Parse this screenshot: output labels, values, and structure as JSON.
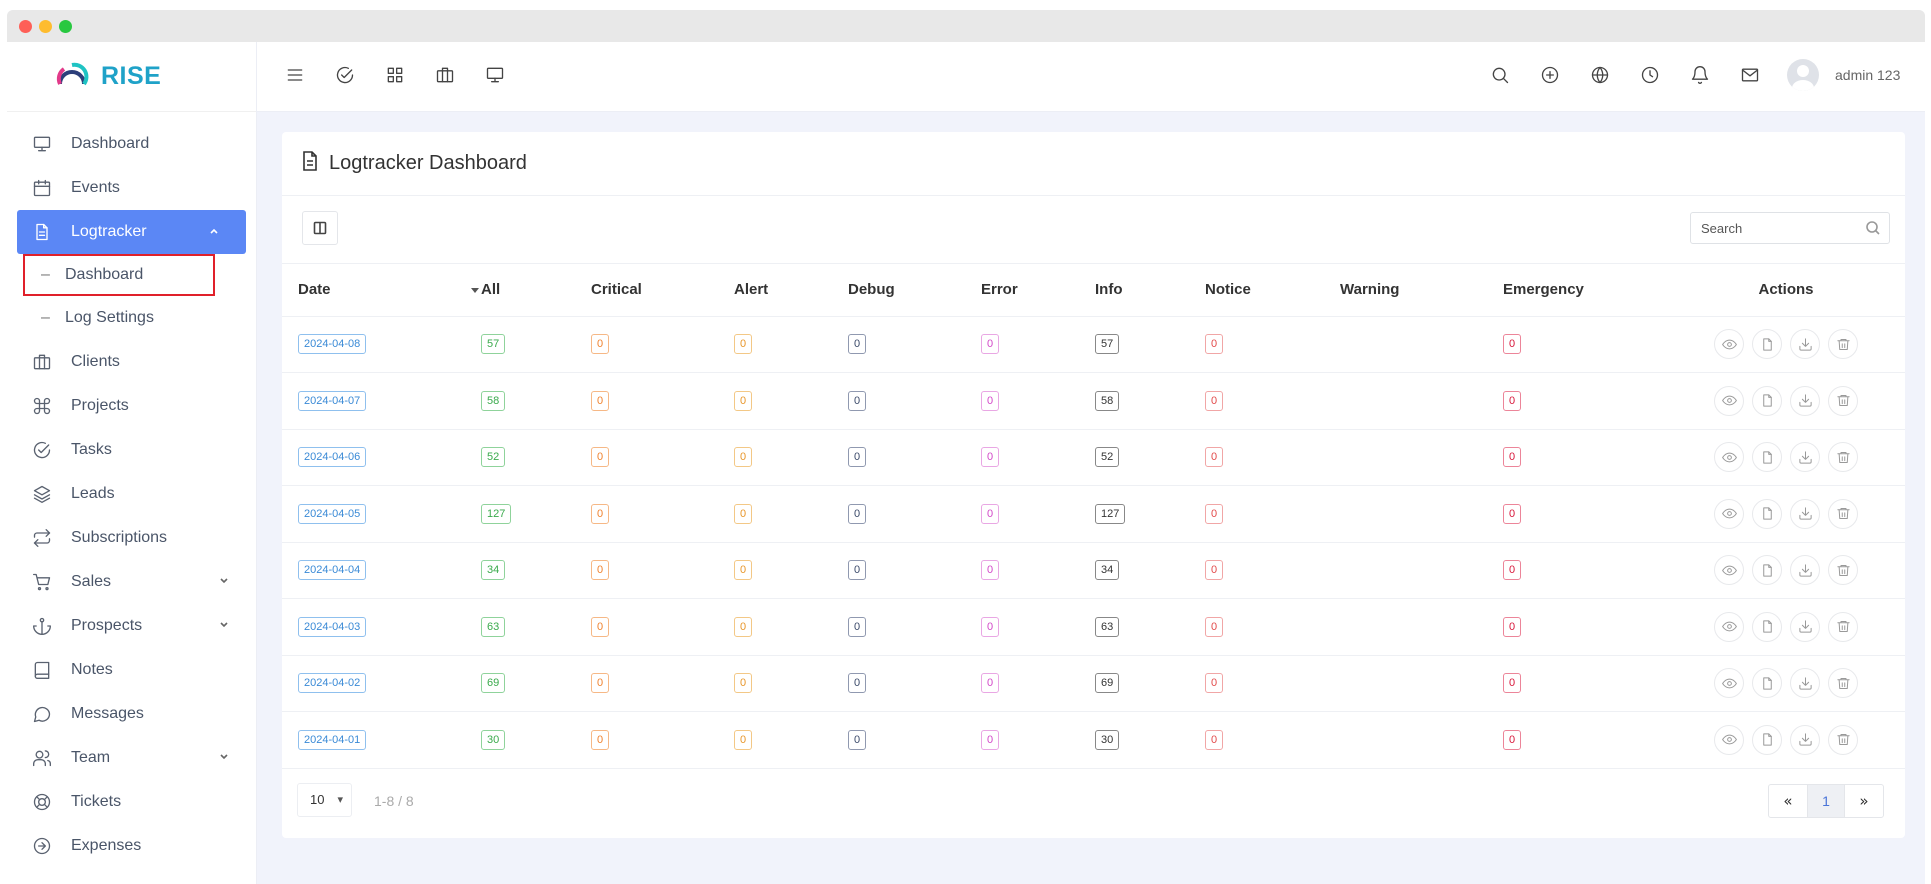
{
  "brand": {
    "name": "RISE"
  },
  "sidebar": {
    "items": [
      {
        "label": "Dashboard",
        "icon": "monitor-icon"
      },
      {
        "label": "Events",
        "icon": "calendar-icon"
      },
      {
        "label": "Logtracker",
        "icon": "file-text-icon",
        "active": true,
        "expanded": true
      },
      {
        "label": "Dashboard",
        "sub": true,
        "highlighted": true
      },
      {
        "label": "Log Settings",
        "sub": true
      },
      {
        "label": "Clients",
        "icon": "briefcase-icon"
      },
      {
        "label": "Projects",
        "icon": "command-icon"
      },
      {
        "label": "Tasks",
        "icon": "check-circle-icon"
      },
      {
        "label": "Leads",
        "icon": "layers-icon"
      },
      {
        "label": "Subscriptions",
        "icon": "repeat-icon"
      },
      {
        "label": "Sales",
        "icon": "shopping-cart-icon",
        "has_children": true
      },
      {
        "label": "Prospects",
        "icon": "anchor-icon",
        "has_children": true
      },
      {
        "label": "Notes",
        "icon": "book-icon"
      },
      {
        "label": "Messages",
        "icon": "message-circle-icon"
      },
      {
        "label": "Team",
        "icon": "users-icon",
        "has_children": true
      },
      {
        "label": "Tickets",
        "icon": "life-buoy-icon"
      },
      {
        "label": "Expenses",
        "icon": "arrow-right-circle-icon"
      }
    ]
  },
  "topbar": {
    "left_icons": [
      "menu-icon",
      "check-circle-icon",
      "grid-icon",
      "briefcase-icon",
      "monitor-icon"
    ],
    "right_icons": [
      "search-icon",
      "plus-circle-icon",
      "globe-icon",
      "clock-icon",
      "bell-icon",
      "mail-icon"
    ],
    "user_name": "admin 123"
  },
  "page": {
    "title": "Logtracker Dashboard",
    "search_placeholder": "Search"
  },
  "table": {
    "columns": [
      "Date",
      "All",
      "Critical",
      "Alert",
      "Debug",
      "Error",
      "Info",
      "Notice",
      "Warning",
      "Emergency",
      "Actions"
    ],
    "rows": [
      {
        "date": "2024-04-08",
        "all": "57",
        "critical": "0",
        "alert": "0",
        "debug": "0",
        "error": "0",
        "info": "57",
        "notice": "0",
        "warning": "",
        "emergency": "0"
      },
      {
        "date": "2024-04-07",
        "all": "58",
        "critical": "0",
        "alert": "0",
        "debug": "0",
        "error": "0",
        "info": "58",
        "notice": "0",
        "warning": "",
        "emergency": "0"
      },
      {
        "date": "2024-04-06",
        "all": "52",
        "critical": "0",
        "alert": "0",
        "debug": "0",
        "error": "0",
        "info": "52",
        "notice": "0",
        "warning": "",
        "emergency": "0"
      },
      {
        "date": "2024-04-05",
        "all": "127",
        "critical": "0",
        "alert": "0",
        "debug": "0",
        "error": "0",
        "info": "127",
        "notice": "0",
        "warning": "",
        "emergency": "0"
      },
      {
        "date": "2024-04-04",
        "all": "34",
        "critical": "0",
        "alert": "0",
        "debug": "0",
        "error": "0",
        "info": "34",
        "notice": "0",
        "warning": "",
        "emergency": "0"
      },
      {
        "date": "2024-04-03",
        "all": "63",
        "critical": "0",
        "alert": "0",
        "debug": "0",
        "error": "0",
        "info": "63",
        "notice": "0",
        "warning": "",
        "emergency": "0"
      },
      {
        "date": "2024-04-02",
        "all": "69",
        "critical": "0",
        "alert": "0",
        "debug": "0",
        "error": "0",
        "info": "69",
        "notice": "0",
        "warning": "",
        "emergency": "0"
      },
      {
        "date": "2024-04-01",
        "all": "30",
        "critical": "0",
        "alert": "0",
        "debug": "0",
        "error": "0",
        "info": "30",
        "notice": "0",
        "warning": "",
        "emergency": "0"
      }
    ],
    "row_actions": [
      "eye-icon",
      "file-icon",
      "download-icon",
      "trash-icon"
    ]
  },
  "pagination": {
    "page_size": "10",
    "range_text": "1-8 / 8",
    "first_label": "«",
    "current_page": "1",
    "last_label": "»"
  },
  "colors": {
    "active_nav": "#5b87f5",
    "brand": "#1fa2c8",
    "highlight_border": "#e0202a"
  }
}
